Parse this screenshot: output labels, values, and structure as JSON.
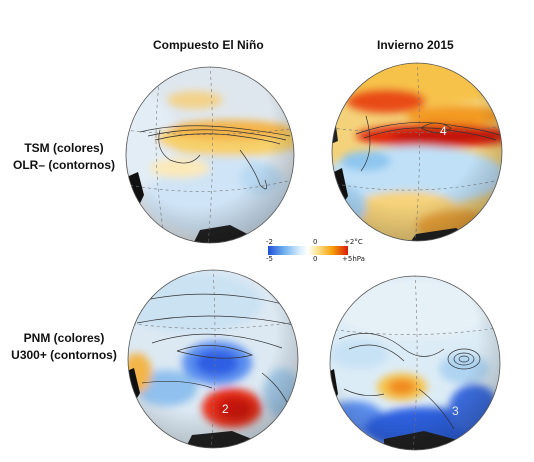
{
  "columns": {
    "left": "Compuesto El Niño",
    "right": "Invierno 2015"
  },
  "rows": {
    "top": {
      "line1": "TSM (colores)",
      "line2": "OLR– (contornos)"
    },
    "bottom": {
      "line1": "PNM (colores)",
      "line2": "U300+ (contornos)"
    }
  },
  "colorbar": {
    "top_labels": {
      "min": "-2",
      "mid": "0",
      "max": "+2°C"
    },
    "bottom_labels": {
      "min": "-5",
      "mid": "0",
      "max": "+5hPa"
    },
    "colors": [
      "#1f4fd8",
      "#6fb0ee",
      "#dcefff",
      "#ffffff",
      "#ffe9a0",
      "#f7a20a",
      "#d61c0c"
    ]
  },
  "panel_markers": {
    "top_right": "4",
    "bottom_left": "2",
    "bottom_right": "3"
  }
}
